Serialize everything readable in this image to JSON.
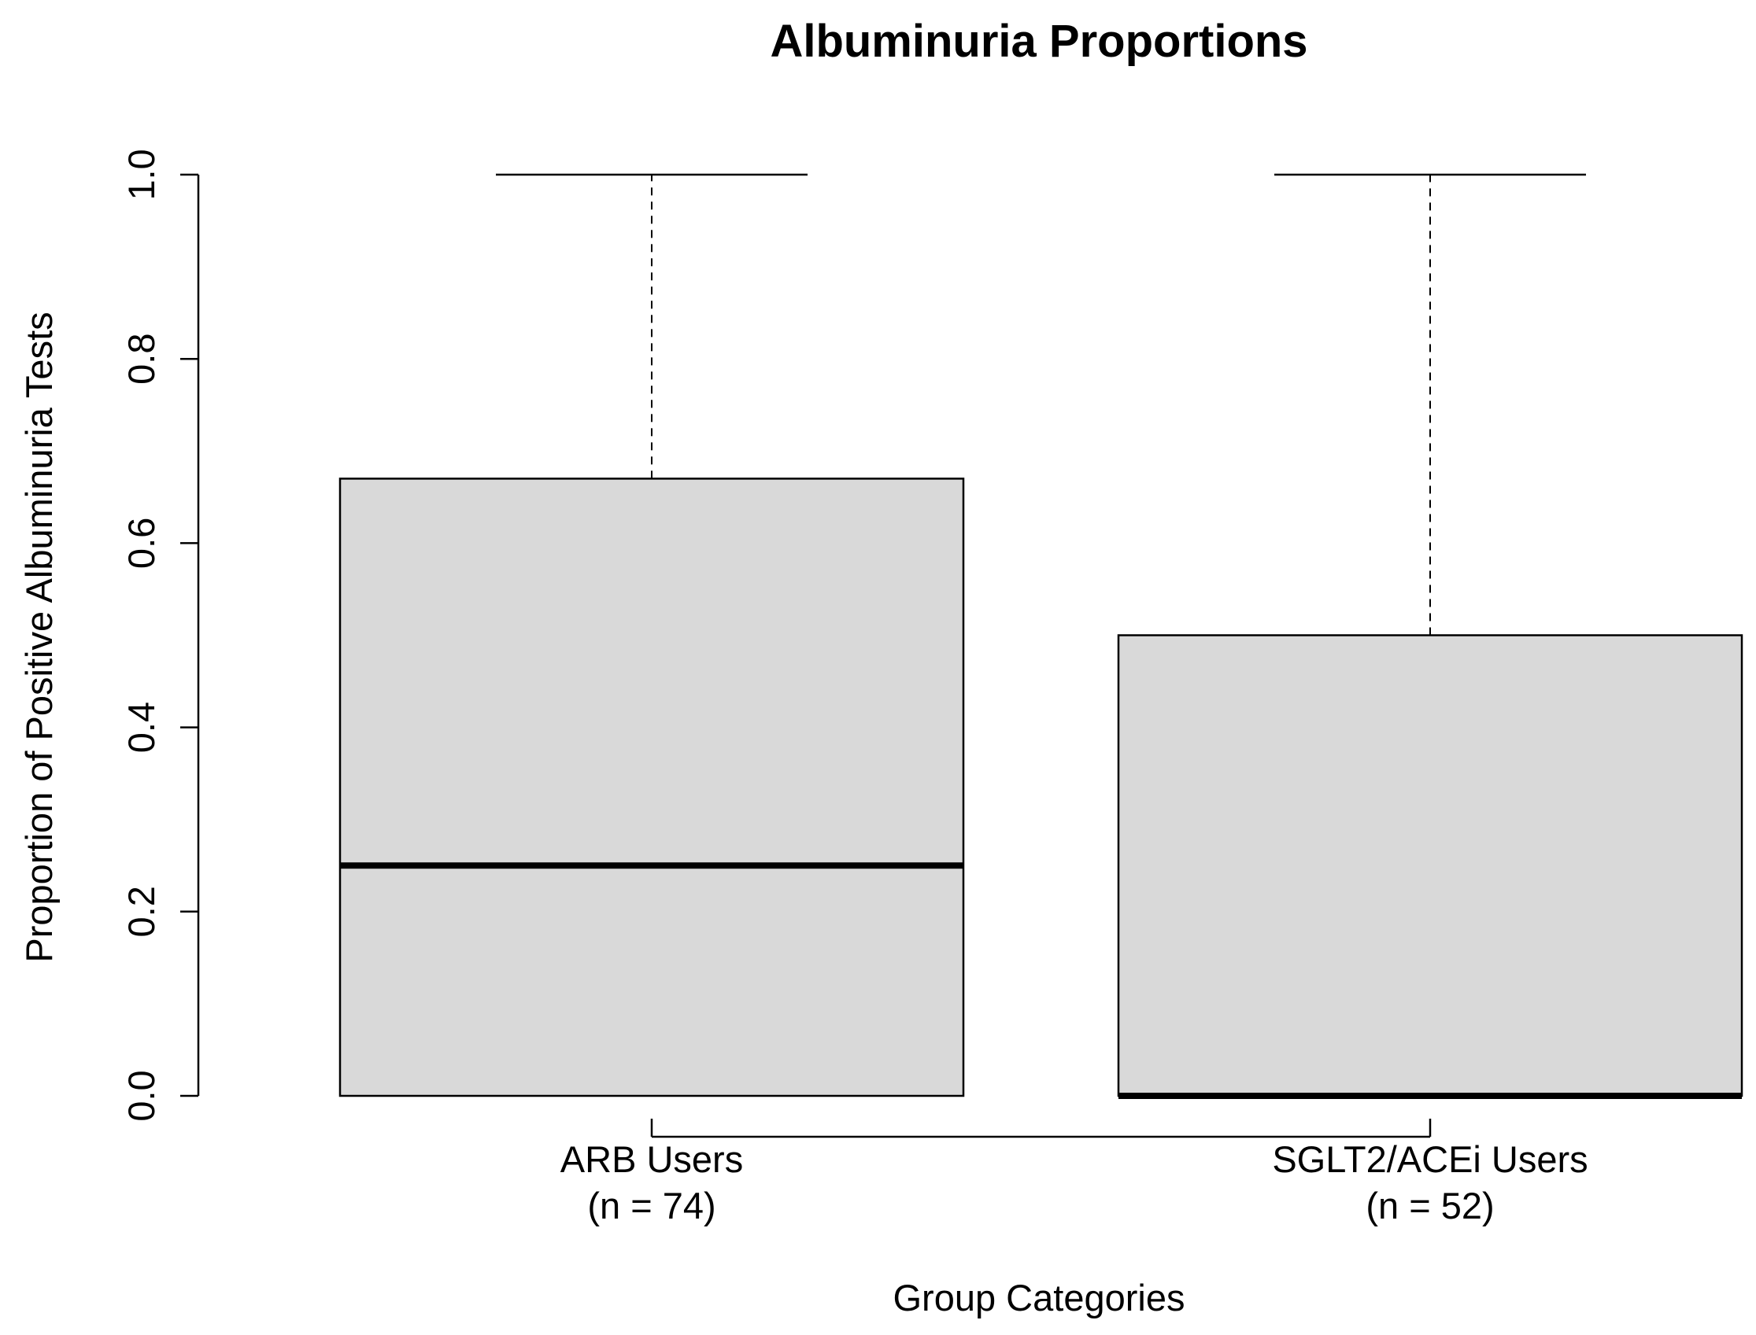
{
  "chart_data": {
    "type": "boxplot",
    "title": "Albuminuria Proportions",
    "xlabel": "Group Categories",
    "ylabel": "Proportion of Positive Albuminuria Tests",
    "ylim": [
      0.0,
      1.0
    ],
    "yticks": [
      "0.0",
      "0.2",
      "0.4",
      "0.6",
      "0.8",
      "1.0"
    ],
    "grid": false,
    "legend": "none",
    "box_fill": "#d9d9d9",
    "line_color": "#000000",
    "categories": [
      {
        "label": "ARB Users",
        "n_label": "(n = 74)"
      },
      {
        "label": "SGLT2/ACEi Users",
        "n_label": "(n = 52)"
      }
    ],
    "series": [
      {
        "min": 0.0,
        "q1": 0.0,
        "median": 0.25,
        "q3": 0.67,
        "max": 1.0
      },
      {
        "min": 0.0,
        "q1": 0.0,
        "median": 0.0,
        "q3": 0.5,
        "max": 1.0
      }
    ]
  }
}
